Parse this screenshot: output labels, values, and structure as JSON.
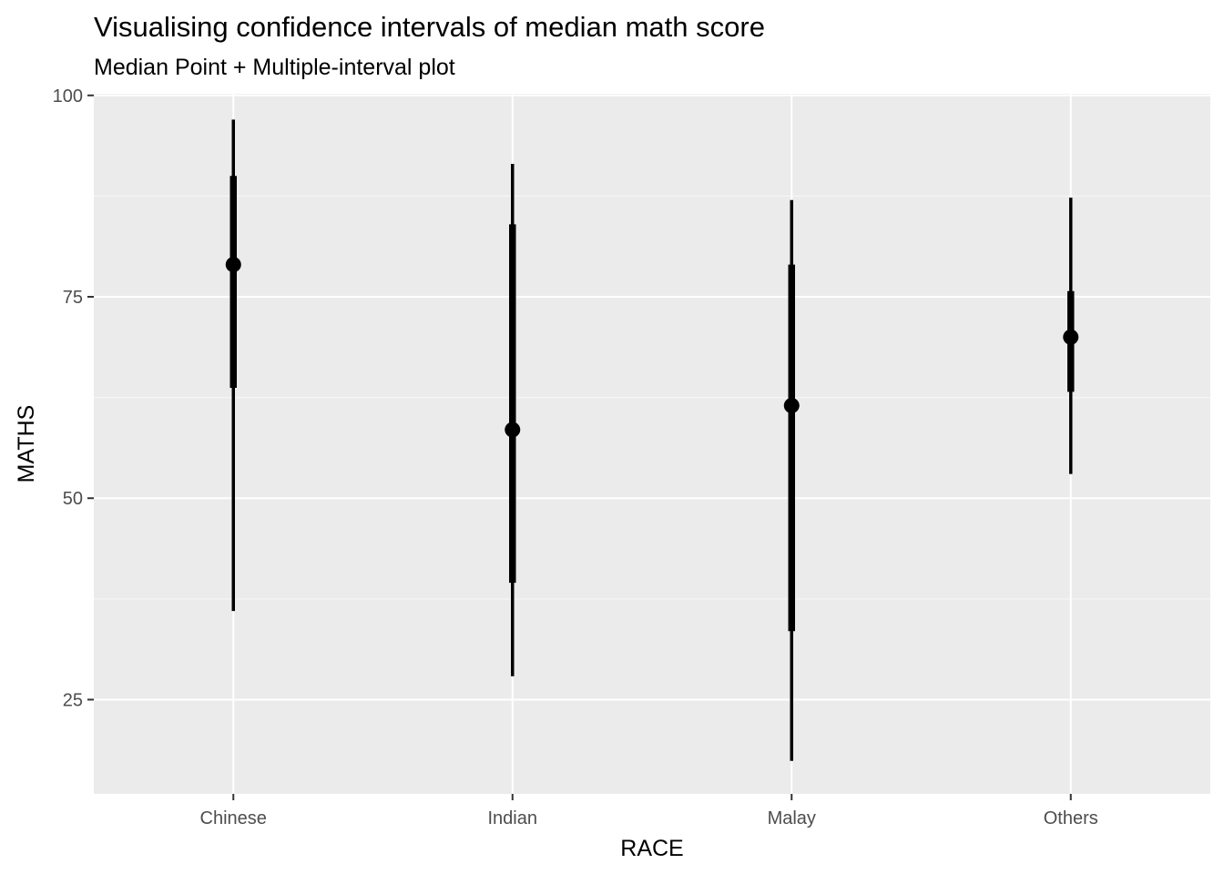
{
  "chart_data": {
    "type": "pointinterval",
    "title": "Visualising confidence intervals of median math score",
    "subtitle": "Median Point + Multiple-interval plot",
    "xlabel": "RACE",
    "ylabel": "MATHS",
    "ylim": [
      13.3,
      100.2
    ],
    "yticks": [
      25,
      50,
      75,
      100
    ],
    "categories": [
      "Chinese",
      "Indian",
      "Malay",
      "Others"
    ],
    "median": [
      79,
      58.5,
      61.5,
      70
    ],
    "inner_interval": [
      [
        63.7,
        90
      ],
      [
        39.5,
        84
      ],
      [
        33.5,
        79
      ],
      [
        63.2,
        75.7
      ]
    ],
    "outer_interval": [
      [
        36,
        97
      ],
      [
        27.9,
        91.5
      ],
      [
        17.4,
        87
      ],
      [
        53,
        87.3
      ]
    ],
    "grid": true,
    "colors": {
      "panel_bg": "#ebebeb",
      "grid_major": "#ffffff",
      "grid_minor": "#f5f5f5",
      "mark": "#000000",
      "tick_text": "#4d4d4d"
    }
  }
}
